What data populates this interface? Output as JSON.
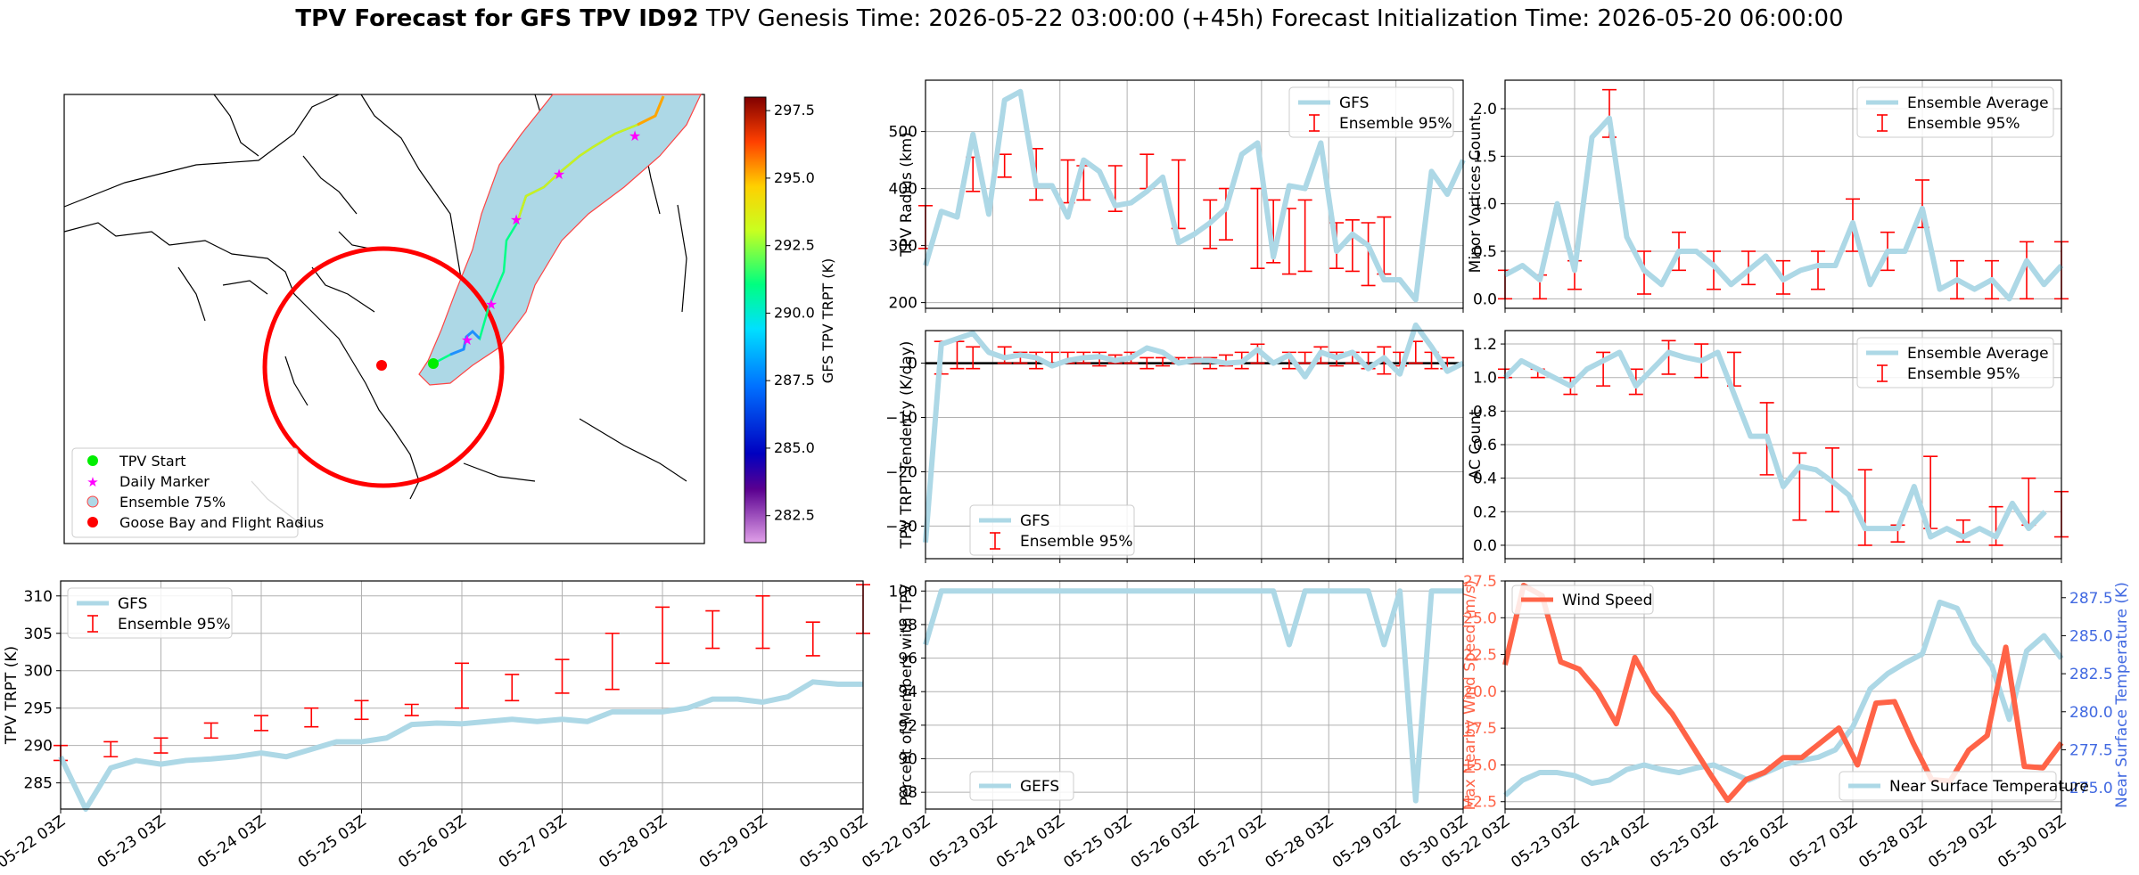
{
  "figure_title": {
    "bold": "TPV Forecast for GFS TPV ID92",
    "rest": "   TPV Genesis Time: 2026-05-22 03:00:00 (+45h)   Forecast Initialization Time: 2026-05-20 06:00:00"
  },
  "colors": {
    "light_blue": "#add8e6",
    "red": "#ff0000",
    "wind": "#ff6347",
    "temp_axis": "#4169e1"
  },
  "chart_data": [
    {
      "id": "map",
      "type": "map",
      "legend": [
        "TPV Start",
        "Daily Marker",
        "Ensemble 75%",
        "Goose Bay and Flight Radius"
      ],
      "colorbar_label": "GFS TPV TRPT (K)",
      "colorbar_ticks": [
        "297.5",
        "295.0",
        "292.5",
        "290.0",
        "287.5",
        "285.0",
        "282.5"
      ],
      "colorbar_range": [
        281.5,
        298.0
      ]
    },
    {
      "id": "radius",
      "type": "line",
      "ylabel": "TPV Radius (km)",
      "ylim": [
        190,
        590
      ],
      "yticks": [
        200,
        300,
        400,
        500
      ],
      "legend": [
        "GFS",
        "Ensemble 95%"
      ],
      "line": [
        265,
        360,
        350,
        495,
        355,
        555,
        570,
        405,
        405,
        350,
        450,
        430,
        370,
        375,
        395,
        420,
        305,
        320,
        340,
        365,
        460,
        480,
        280,
        405,
        400,
        480,
        290,
        320,
        300,
        240,
        240,
        205,
        430,
        390,
        450
      ],
      "err": [
        [
          0,
          295,
          370
        ],
        [
          3,
          395,
          455
        ],
        [
          5,
          420,
          460
        ],
        [
          7,
          380,
          470
        ],
        [
          9,
          375,
          450
        ],
        [
          10,
          380,
          440
        ],
        [
          12,
          360,
          440
        ],
        [
          14,
          400,
          460
        ],
        [
          16,
          330,
          450
        ],
        [
          18,
          295,
          380
        ],
        [
          19,
          310,
          400
        ],
        [
          21,
          260,
          400
        ],
        [
          22,
          270,
          380
        ],
        [
          23,
          250,
          365
        ],
        [
          24,
          255,
          380
        ],
        [
          26,
          260,
          340
        ],
        [
          27,
          255,
          345
        ],
        [
          28,
          230,
          340
        ],
        [
          29,
          250,
          350
        ]
      ]
    },
    {
      "id": "minor",
      "type": "line",
      "ylabel": "Minor Vortices Count",
      "ylim": [
        -0.1,
        2.3
      ],
      "yticks": [
        "0.0",
        "0.5",
        "1.0",
        "1.5",
        "2.0"
      ],
      "legend": [
        "Ensemble Average",
        "Ensemble 95%"
      ],
      "line": [
        0.25,
        0.35,
        0.2,
        1.0,
        0.3,
        1.7,
        1.9,
        0.65,
        0.3,
        0.15,
        0.5,
        0.5,
        0.35,
        0.15,
        0.3,
        0.45,
        0.2,
        0.3,
        0.35,
        0.35,
        0.8,
        0.15,
        0.5,
        0.5,
        0.95,
        0.1,
        0.2,
        0.1,
        0.2,
        0.0,
        0.4,
        0.15,
        0.35
      ],
      "err": [
        [
          0,
          0.0,
          0.3
        ],
        [
          2,
          0.0,
          0.25
        ],
        [
          4,
          0.1,
          0.4
        ],
        [
          6,
          1.7,
          2.2
        ],
        [
          8,
          0.05,
          0.5
        ],
        [
          10,
          0.3,
          0.7
        ],
        [
          12,
          0.1,
          0.5
        ],
        [
          14,
          0.15,
          0.5
        ],
        [
          16,
          0.05,
          0.4
        ],
        [
          18,
          0.1,
          0.5
        ],
        [
          20,
          0.5,
          1.05
        ],
        [
          22,
          0.3,
          0.7
        ],
        [
          24,
          0.75,
          1.25
        ],
        [
          26,
          0.0,
          0.4
        ],
        [
          28,
          0.0,
          0.4
        ],
        [
          30,
          0.0,
          0.6
        ],
        [
          32,
          0.0,
          0.6
        ]
      ]
    },
    {
      "id": "tendency",
      "type": "line",
      "ylabel": "TPV TRPT Tendency (K/day)",
      "ylim": [
        -36,
        6
      ],
      "yticks": [
        "0",
        "−10",
        "−20",
        "−30"
      ],
      "legend": [
        "GFS",
        "Ensemble 95%"
      ],
      "line": [
        -33,
        3.5,
        4.5,
        5.5,
        2,
        1,
        1.5,
        1,
        -0.5,
        0.5,
        1,
        1.2,
        0.5,
        1,
        2.8,
        2,
        0,
        0.5,
        0.5,
        0,
        0.2,
        2.5,
        0,
        1.5,
        -2.5,
        2,
        1,
        2,
        -1,
        1,
        -2,
        7,
        3,
        -1.5,
        0
      ],
      "err": [
        [
          1,
          -2,
          4
        ],
        [
          2,
          -1,
          4
        ],
        [
          3,
          -1,
          3
        ],
        [
          5,
          0,
          3
        ],
        [
          6,
          0,
          2
        ],
        [
          7,
          -1,
          2
        ],
        [
          8,
          0,
          2
        ],
        [
          9,
          0,
          2
        ],
        [
          10,
          0,
          2
        ],
        [
          11,
          -0.5,
          2
        ],
        [
          12,
          0,
          1.5
        ],
        [
          13,
          0,
          2
        ],
        [
          14,
          -1,
          1
        ],
        [
          15,
          -0.5,
          1
        ],
        [
          16,
          0,
          1
        ],
        [
          17,
          0,
          1
        ],
        [
          18,
          -1,
          1
        ],
        [
          19,
          -0.5,
          1.5
        ],
        [
          20,
          -1,
          2
        ],
        [
          21,
          0,
          3.5
        ],
        [
          23,
          -1,
          2
        ],
        [
          24,
          0,
          2
        ],
        [
          25,
          0,
          3
        ],
        [
          26,
          -0.5,
          2
        ],
        [
          27,
          0,
          2
        ],
        [
          28,
          -1,
          2
        ],
        [
          29,
          -2,
          3
        ],
        [
          30,
          -0.5,
          2
        ],
        [
          31,
          0,
          4
        ],
        [
          32,
          -1,
          2
        ],
        [
          33,
          -1,
          1
        ]
      ]
    },
    {
      "id": "ac",
      "type": "line",
      "ylabel": "AC Count",
      "ylim": [
        -0.08,
        1.28
      ],
      "yticks": [
        "0.0",
        "0.2",
        "0.4",
        "0.6",
        "0.8",
        "1.0",
        "1.2"
      ],
      "legend": [
        "Ensemble Average",
        "Ensemble 95%"
      ],
      "line": [
        1.0,
        1.1,
        1.05,
        1.0,
        0.95,
        1.05,
        1.1,
        1.15,
        0.95,
        1.05,
        1.15,
        1.12,
        1.1,
        1.15,
        0.9,
        0.65,
        0.65,
        0.35,
        0.47,
        0.45,
        0.38,
        0.3,
        0.1,
        0.1,
        0.1,
        0.35,
        0.05,
        0.1,
        0.05,
        0.1,
        0.05,
        0.25,
        0.1,
        0.2
      ],
      "err": [
        [
          0,
          1.0,
          1.05
        ],
        [
          2,
          1.0,
          1.05
        ],
        [
          4,
          0.9,
          1.0
        ],
        [
          6,
          0.95,
          1.15
        ],
        [
          8,
          0.9,
          1.05
        ],
        [
          10,
          1.02,
          1.22
        ],
        [
          12,
          1.0,
          1.2
        ],
        [
          14,
          0.95,
          1.15
        ],
        [
          16,
          0.42,
          0.85
        ],
        [
          18,
          0.15,
          0.55
        ],
        [
          20,
          0.2,
          0.58
        ],
        [
          22,
          0.0,
          0.45
        ],
        [
          24,
          0.02,
          0.12
        ],
        [
          26,
          0.1,
          0.53
        ],
        [
          28,
          0.02,
          0.15
        ],
        [
          30,
          0.0,
          0.23
        ],
        [
          32,
          0.12,
          0.4
        ],
        [
          34,
          0.05,
          0.32
        ]
      ]
    },
    {
      "id": "trpt",
      "type": "line",
      "ylabel": "TPV TRPT (K)",
      "ylim": [
        281.5,
        312
      ],
      "yticks": [
        285,
        290,
        295,
        300,
        305,
        310
      ],
      "legend": [
        "GFS",
        "Ensemble 95%"
      ],
      "line": [
        288.5,
        281.5,
        287,
        288,
        287.5,
        288,
        288.2,
        288.5,
        289,
        288.5,
        289.5,
        290.5,
        290.5,
        291,
        292.8,
        293,
        292.9,
        293.2,
        293.5,
        293.2,
        293.5,
        293.2,
        294.5,
        294.5,
        294.5,
        295,
        296.2,
        296.2,
        295.8,
        296.5,
        298.5,
        298.2,
        298.2
      ],
      "err": [
        [
          0,
          288,
          290
        ],
        [
          3,
          288.5,
          290.5
        ],
        [
          6,
          289,
          291
        ],
        [
          9,
          291,
          293
        ],
        [
          12,
          292,
          294
        ],
        [
          15,
          292.5,
          295
        ],
        [
          18,
          293.5,
          296
        ],
        [
          21,
          294,
          295.5
        ],
        [
          24,
          295,
          301
        ],
        [
          27,
          296,
          299.5
        ],
        [
          30,
          297,
          301.5
        ],
        [
          33,
          297.5,
          305
        ],
        [
          36,
          301,
          308.5
        ],
        [
          39,
          303,
          308
        ],
        [
          42,
          303,
          310
        ],
        [
          45,
          302,
          306.5
        ],
        [
          48,
          305,
          311.5
        ]
      ]
    },
    {
      "id": "members",
      "type": "line",
      "ylabel": "Percent of Members with TPV",
      "ylim": [
        87,
        100.6
      ],
      "yticks": [
        88,
        90,
        92,
        94,
        96,
        98,
        100
      ],
      "legend": [
        "GEFS"
      ],
      "line": [
        [
          0,
          96.8
        ],
        [
          1,
          100
        ],
        [
          2,
          100
        ],
        [
          22,
          100
        ],
        [
          23,
          96.8
        ],
        [
          24,
          100
        ],
        [
          28,
          100
        ],
        [
          29,
          96.8
        ],
        [
          30,
          100
        ],
        [
          31,
          87.5
        ],
        [
          32,
          100
        ],
        [
          34,
          100
        ]
      ]
    },
    {
      "id": "wind",
      "type": "line",
      "ylabel": "Max Nearby Wind Speed (m/s)",
      "ylabel2": "Near Surface Temperature (K)",
      "ylim": [
        12,
        27.5
      ],
      "ylim2": [
        273.6,
        288.6
      ],
      "yticks": [
        "12.5",
        "15.0",
        "17.5",
        "20.0",
        "22.5",
        "25.0",
        "27.5"
      ],
      "yticks2": [
        "275.0",
        "277.5",
        "280.0",
        "282.5",
        "285.0",
        "287.5"
      ],
      "legend": [
        "Wind Speed",
        "Near Surface Temperature"
      ],
      "wind": [
        21.8,
        27.2,
        26.5,
        22,
        21.5,
        20,
        17.8,
        22.3,
        20,
        18.5,
        16.5,
        14.5,
        12.6,
        14,
        14.5,
        15.5,
        15.5,
        16.5,
        17.5,
        15,
        19.2,
        19.3,
        16.5,
        14,
        13.9,
        16,
        17,
        23,
        14.9,
        14.8,
        16.5
      ],
      "temp": [
        274.5,
        275.5,
        276,
        276,
        275.8,
        275.3,
        275.5,
        276.2,
        276.5,
        276.2,
        276,
        276.3,
        276.5,
        276,
        275.5,
        276,
        276.5,
        276.8,
        277,
        277.5,
        279,
        281.5,
        282.5,
        283.2,
        283.8,
        287.2,
        286.8,
        284.5,
        283,
        279.5,
        284,
        285,
        283.5
      ]
    }
  ],
  "xticks": [
    "05-22 03Z",
    "05-23 03Z",
    "05-24 03Z",
    "05-25 03Z",
    "05-26 03Z",
    "05-27 03Z",
    "05-28 03Z",
    "05-29 03Z",
    "05-30 03Z"
  ]
}
